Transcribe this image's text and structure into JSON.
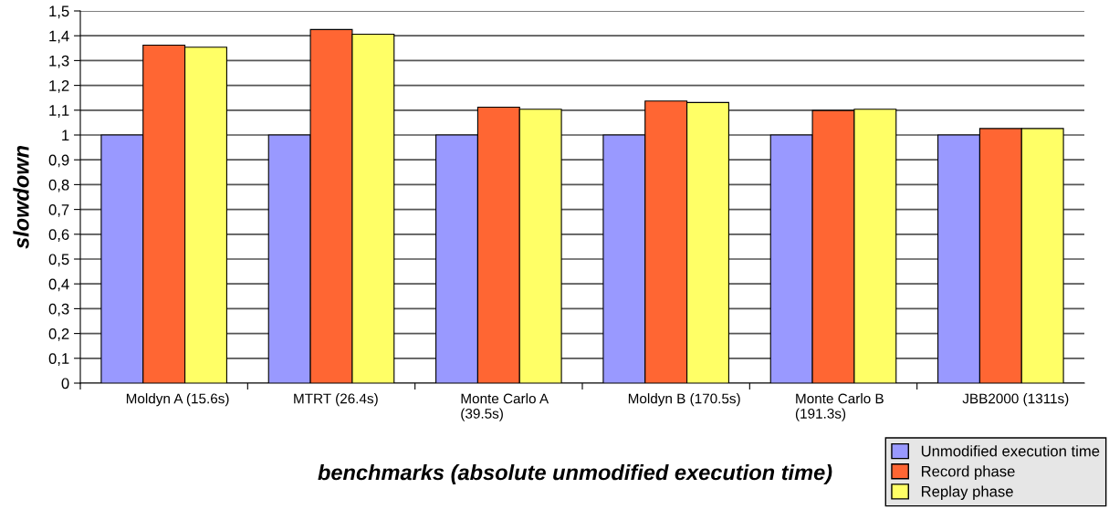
{
  "chart_data": {
    "type": "bar",
    "xlabel": "benchmarks (absolute unmodified execution time)",
    "ylabel": "slowdown",
    "categories": [
      "Moldyn A (15.6s)",
      "MTRT (26.4s)",
      "Monte Carlo A\n(39.5s)",
      "Moldyn B (170.5s)",
      "Monte Carlo B\n(191.3s)",
      "JBB2000 (1311s)"
    ],
    "series": [
      {
        "name": "Unmodified execution time",
        "color": "#9999ff",
        "values": [
          1,
          1,
          1,
          1,
          1,
          1
        ]
      },
      {
        "name": "Record phase",
        "color": "#ff6633",
        "values": [
          1.362,
          1.425,
          1.112,
          1.137,
          1.099,
          1.026
        ]
      },
      {
        "name": "Replay phase",
        "color": "#ffff66",
        "values": [
          1.354,
          1.406,
          1.104,
          1.131,
          1.104,
          1.026
        ]
      }
    ],
    "ylim": [
      0,
      1.5
    ],
    "yticks": [
      0,
      {
        "value": 0.1,
        "label": "0,1"
      },
      {
        "value": 0.2,
        "label": "0,2"
      },
      {
        "value": 0.3,
        "label": "0,3"
      },
      {
        "value": 0.4,
        "label": "0,4"
      },
      {
        "value": 0.5,
        "label": "0,5"
      },
      {
        "value": 0.6,
        "label": "0,6"
      },
      {
        "value": 0.7,
        "label": "0,7"
      },
      {
        "value": 0.8,
        "label": "0,8"
      },
      {
        "value": 0.9,
        "label": "0,9"
      },
      1,
      {
        "value": 1.1,
        "label": "1,1"
      },
      {
        "value": 1.2,
        "label": "1,2"
      },
      {
        "value": 1.3,
        "label": "1,3"
      },
      {
        "value": 1.4,
        "label": "1,4"
      },
      {
        "value": 1.5,
        "label": "1,5"
      }
    ],
    "grid": "y",
    "legend": "bottom right"
  }
}
